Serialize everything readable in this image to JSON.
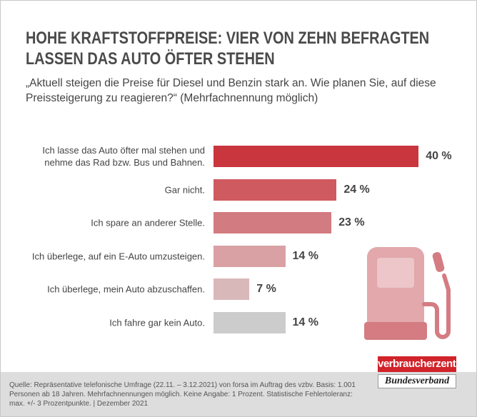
{
  "chart_data": {
    "type": "bar",
    "orientation": "horizontal",
    "title": "HOHE KRAFTSTOFFPREISE: VIER VON ZEHN BEFRAGTEN\nLASSEN DAS AUTO ÖFTER STEHEN",
    "subtitle": "„Aktuell steigen die Preise für Diesel und Benzin stark an. Wie planen Sie, auf diese Preissteigerung zu reagieren?“ (Mehrfachnennung möglich)",
    "categories": [
      "Ich lasse das Auto öfter mal stehen und nehme das Rad bzw. Bus und Bahnen.",
      "Gar nicht.",
      "Ich spare an anderer Stelle.",
      "Ich überlege, auf ein E-Auto umzusteigen.",
      "Ich überlege, mein Auto abzuschaffen.",
      "Ich fahre gar kein Auto."
    ],
    "values": [
      40,
      24,
      23,
      14,
      7,
      14
    ],
    "value_labels": [
      "40 %",
      "24 %",
      "23 %",
      "14 %",
      "7 %",
      "14 %"
    ],
    "colors": [
      "#c9363e",
      "#cf5a60",
      "#d27b80",
      "#d9a1a4",
      "#d9b8ba",
      "#cccccc"
    ],
    "source": "Quelle: Repräsentative telefonische Umfrage (22.11. – 3.12.2021) von forsa im Auftrag des vzbv. Basis: 1.001 Personen ab 18 Jahren. Mehrfachnennungen möglich. Keine Angabe: 1 Prozent. Statistische Fehlertoleranz: max. +/- 3 Prozentpunkte. | Dezember 2021",
    "logo": {
      "line1": "verbraucherzentrale",
      "line2": "Bundesverband"
    }
  }
}
